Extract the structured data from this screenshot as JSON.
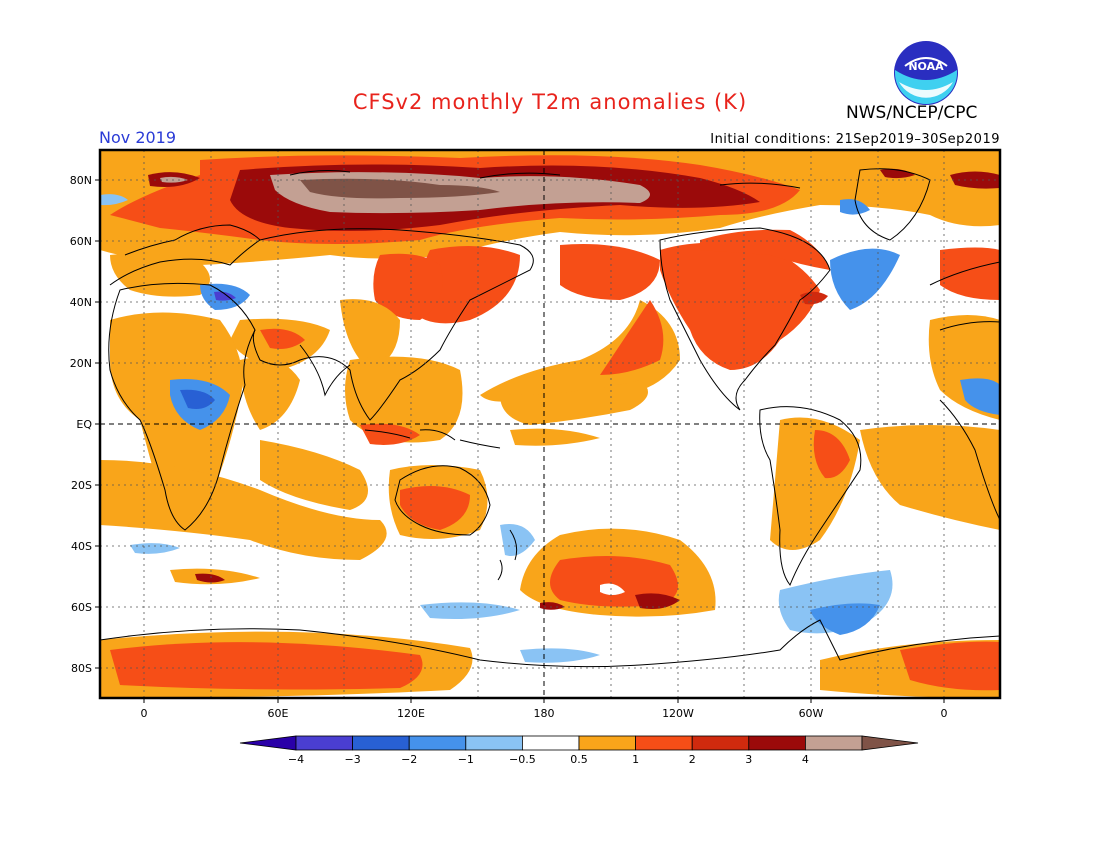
{
  "header": {
    "title": "CFSv2 monthly T2m anomalies (K)",
    "month": "Nov 2019",
    "agency": "NWS/NCEP/CPC",
    "initial_conditions": "Initial conditions: 21Sep2019–30Sep2019",
    "logo_text": "NOAA"
  },
  "map": {
    "projection": "cylindrical equidistant",
    "lon_range": [
      -20,
      380
    ],
    "lat_range": [
      -90,
      90
    ],
    "lon_labels": [
      "0",
      "60E",
      "120E",
      "180",
      "120W",
      "60W",
      "0"
    ],
    "lat_labels": [
      "80N",
      "60N",
      "40N",
      "20N",
      "EQ",
      "20S",
      "40S",
      "60S",
      "80S"
    ],
    "grid": "dotted every 30° longitude and 20° latitude; dashed equator and dateline"
  },
  "colorbar": {
    "labels": [
      "−4",
      "−3",
      "−2",
      "−1",
      "−0.5",
      "0.5",
      "1",
      "2",
      "3",
      "4"
    ],
    "colors": [
      "#2a00a8",
      "#4a3ed1",
      "#2860d4",
      "#4592eb",
      "#8ac3f4",
      "#ffffff",
      "#f9a51a",
      "#f64e17",
      "#d02a0e",
      "#9b0a0a",
      "#c3a093",
      "#7f5347"
    ]
  }
}
